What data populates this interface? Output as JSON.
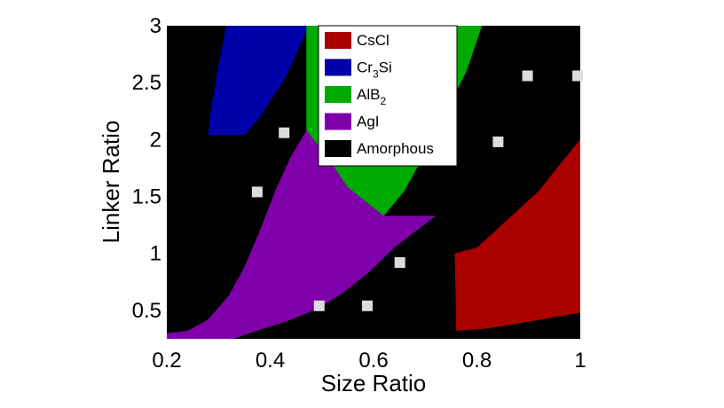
{
  "chart_data": {
    "type": "area",
    "title": "",
    "xlabel": "Size Ratio",
    "ylabel": "Linker Ratio",
    "xlim": [
      0.2,
      1.0
    ],
    "ylim": [
      0.25,
      3.0
    ],
    "xticks": [
      "0.2",
      "0.4",
      "0.6",
      "0.8",
      "1"
    ],
    "yticks": [
      "0.5",
      "1",
      "1.5",
      "2",
      "2.5",
      "3"
    ],
    "background_phase": "Amorphous",
    "legend_position": "top-center",
    "legend": [
      {
        "label": "CsCl",
        "color": "#aa0000"
      },
      {
        "label": "Cr",
        "sub": "3",
        "suffix": "Si",
        "color": "#0000aa"
      },
      {
        "label": "AlB",
        "sub": "2",
        "suffix": "",
        "color": "#00aa00"
      },
      {
        "label": "AgI",
        "color": "#7f00aa"
      },
      {
        "label": "Amorphous",
        "color": "#000000"
      }
    ],
    "regions": [
      {
        "phase": "Cr3Si",
        "color": "#0000aa",
        "points": [
          [
            0.28,
            2.04
          ],
          [
            0.35,
            2.04
          ],
          [
            0.38,
            2.2
          ],
          [
            0.43,
            2.55
          ],
          [
            0.475,
            3.0
          ],
          [
            0.315,
            3.0
          ],
          [
            0.3,
            2.65
          ],
          [
            0.285,
            2.25
          ]
        ]
      },
      {
        "phase": "AlB2",
        "color": "#00aa00",
        "points": [
          [
            0.47,
            3.0
          ],
          [
            0.47,
            2.3
          ],
          [
            0.47,
            2.08
          ],
          [
            0.51,
            1.85
          ],
          [
            0.55,
            1.58
          ],
          [
            0.6,
            1.4
          ],
          [
            0.62,
            1.33
          ],
          [
            0.66,
            1.55
          ],
          [
            0.7,
            1.88
          ],
          [
            0.74,
            2.25
          ],
          [
            0.78,
            2.6
          ],
          [
            0.81,
            3.0
          ]
        ]
      },
      {
        "phase": "AgI",
        "color": "#7f00aa",
        "points": [
          [
            0.2,
            0.3
          ],
          [
            0.24,
            0.32
          ],
          [
            0.28,
            0.42
          ],
          [
            0.32,
            0.63
          ],
          [
            0.35,
            0.88
          ],
          [
            0.38,
            1.2
          ],
          [
            0.41,
            1.55
          ],
          [
            0.44,
            1.85
          ],
          [
            0.47,
            2.08
          ],
          [
            0.51,
            1.85
          ],
          [
            0.55,
            1.58
          ],
          [
            0.6,
            1.4
          ],
          [
            0.62,
            1.33
          ],
          [
            0.72,
            1.33
          ],
          [
            0.64,
            1.05
          ],
          [
            0.59,
            0.83
          ],
          [
            0.54,
            0.65
          ],
          [
            0.49,
            0.51
          ],
          [
            0.43,
            0.4
          ],
          [
            0.38,
            0.33
          ],
          [
            0.33,
            0.25
          ],
          [
            0.2,
            0.25
          ]
        ]
      },
      {
        "phase": "CsCl",
        "color": "#aa0000",
        "points": [
          [
            0.757,
            1.0
          ],
          [
            0.8,
            1.05
          ],
          [
            0.86,
            1.3
          ],
          [
            0.92,
            1.55
          ],
          [
            0.96,
            1.78
          ],
          [
            1.0,
            2.0
          ],
          [
            1.0,
            0.48
          ],
          [
            0.9,
            0.4
          ],
          [
            0.82,
            0.34
          ],
          [
            0.76,
            0.32
          ]
        ]
      }
    ],
    "points": [
      {
        "x": 0.427,
        "y": 2.06
      },
      {
        "x": 0.375,
        "y": 1.54
      },
      {
        "x": 0.495,
        "y": 0.54
      },
      {
        "x": 0.588,
        "y": 0.54
      },
      {
        "x": 0.651,
        "y": 0.92
      },
      {
        "x": 0.841,
        "y": 1.98
      },
      {
        "x": 0.898,
        "y": 2.56
      },
      {
        "x": 0.995,
        "y": 2.56
      }
    ]
  }
}
